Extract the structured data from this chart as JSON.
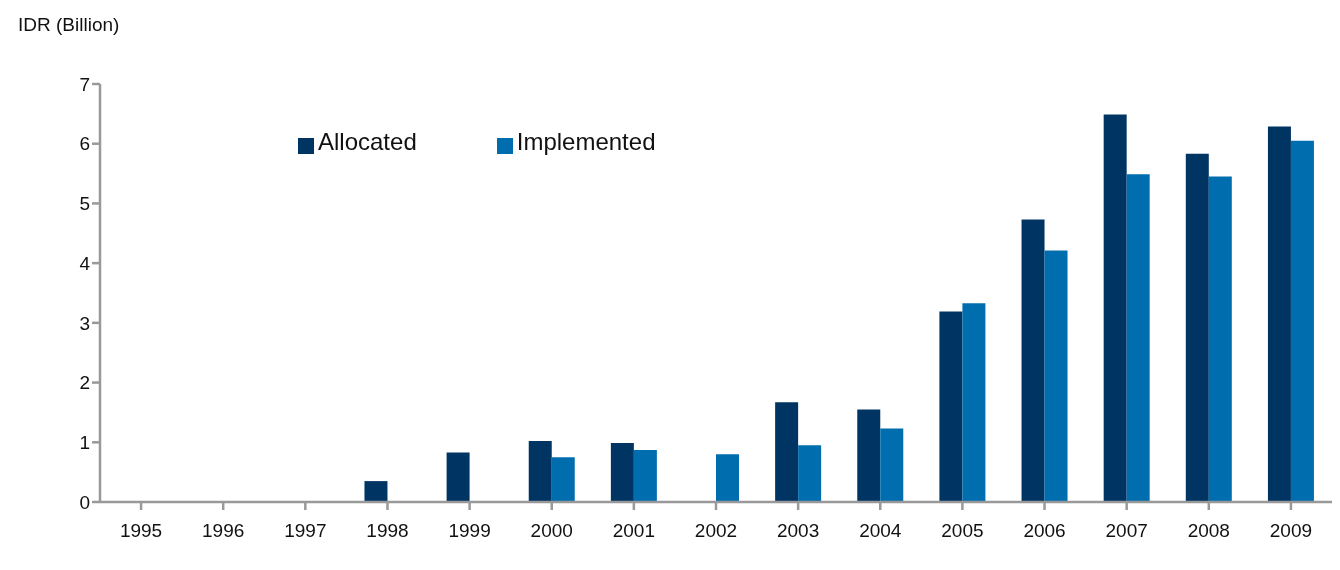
{
  "chart_data": {
    "type": "bar",
    "ylabel": "IDR (Billion)",
    "categories": [
      "1995",
      "1996",
      "1997",
      "1998",
      "1999",
      "2000",
      "2001",
      "2002",
      "2003",
      "2004",
      "2005",
      "2006",
      "2007",
      "2008",
      "2009"
    ],
    "series": [
      {
        "name": "Allocated",
        "color": "#003462",
        "values": [
          null,
          null,
          null,
          0.35,
          0.83,
          1.02,
          0.99,
          null,
          1.67,
          1.55,
          3.19,
          4.73,
          6.49,
          5.83,
          6.29
        ]
      },
      {
        "name": "Implemented",
        "color": "#006eae",
        "values": [
          null,
          null,
          null,
          null,
          null,
          0.75,
          0.87,
          0.8,
          0.95,
          1.23,
          3.33,
          4.21,
          5.49,
          5.45,
          6.05
        ]
      }
    ],
    "ylim": [
      0,
      7
    ],
    "yticks": [
      0,
      1,
      2,
      3,
      4,
      5,
      6,
      7
    ],
    "grid": false,
    "legend": "top left"
  }
}
